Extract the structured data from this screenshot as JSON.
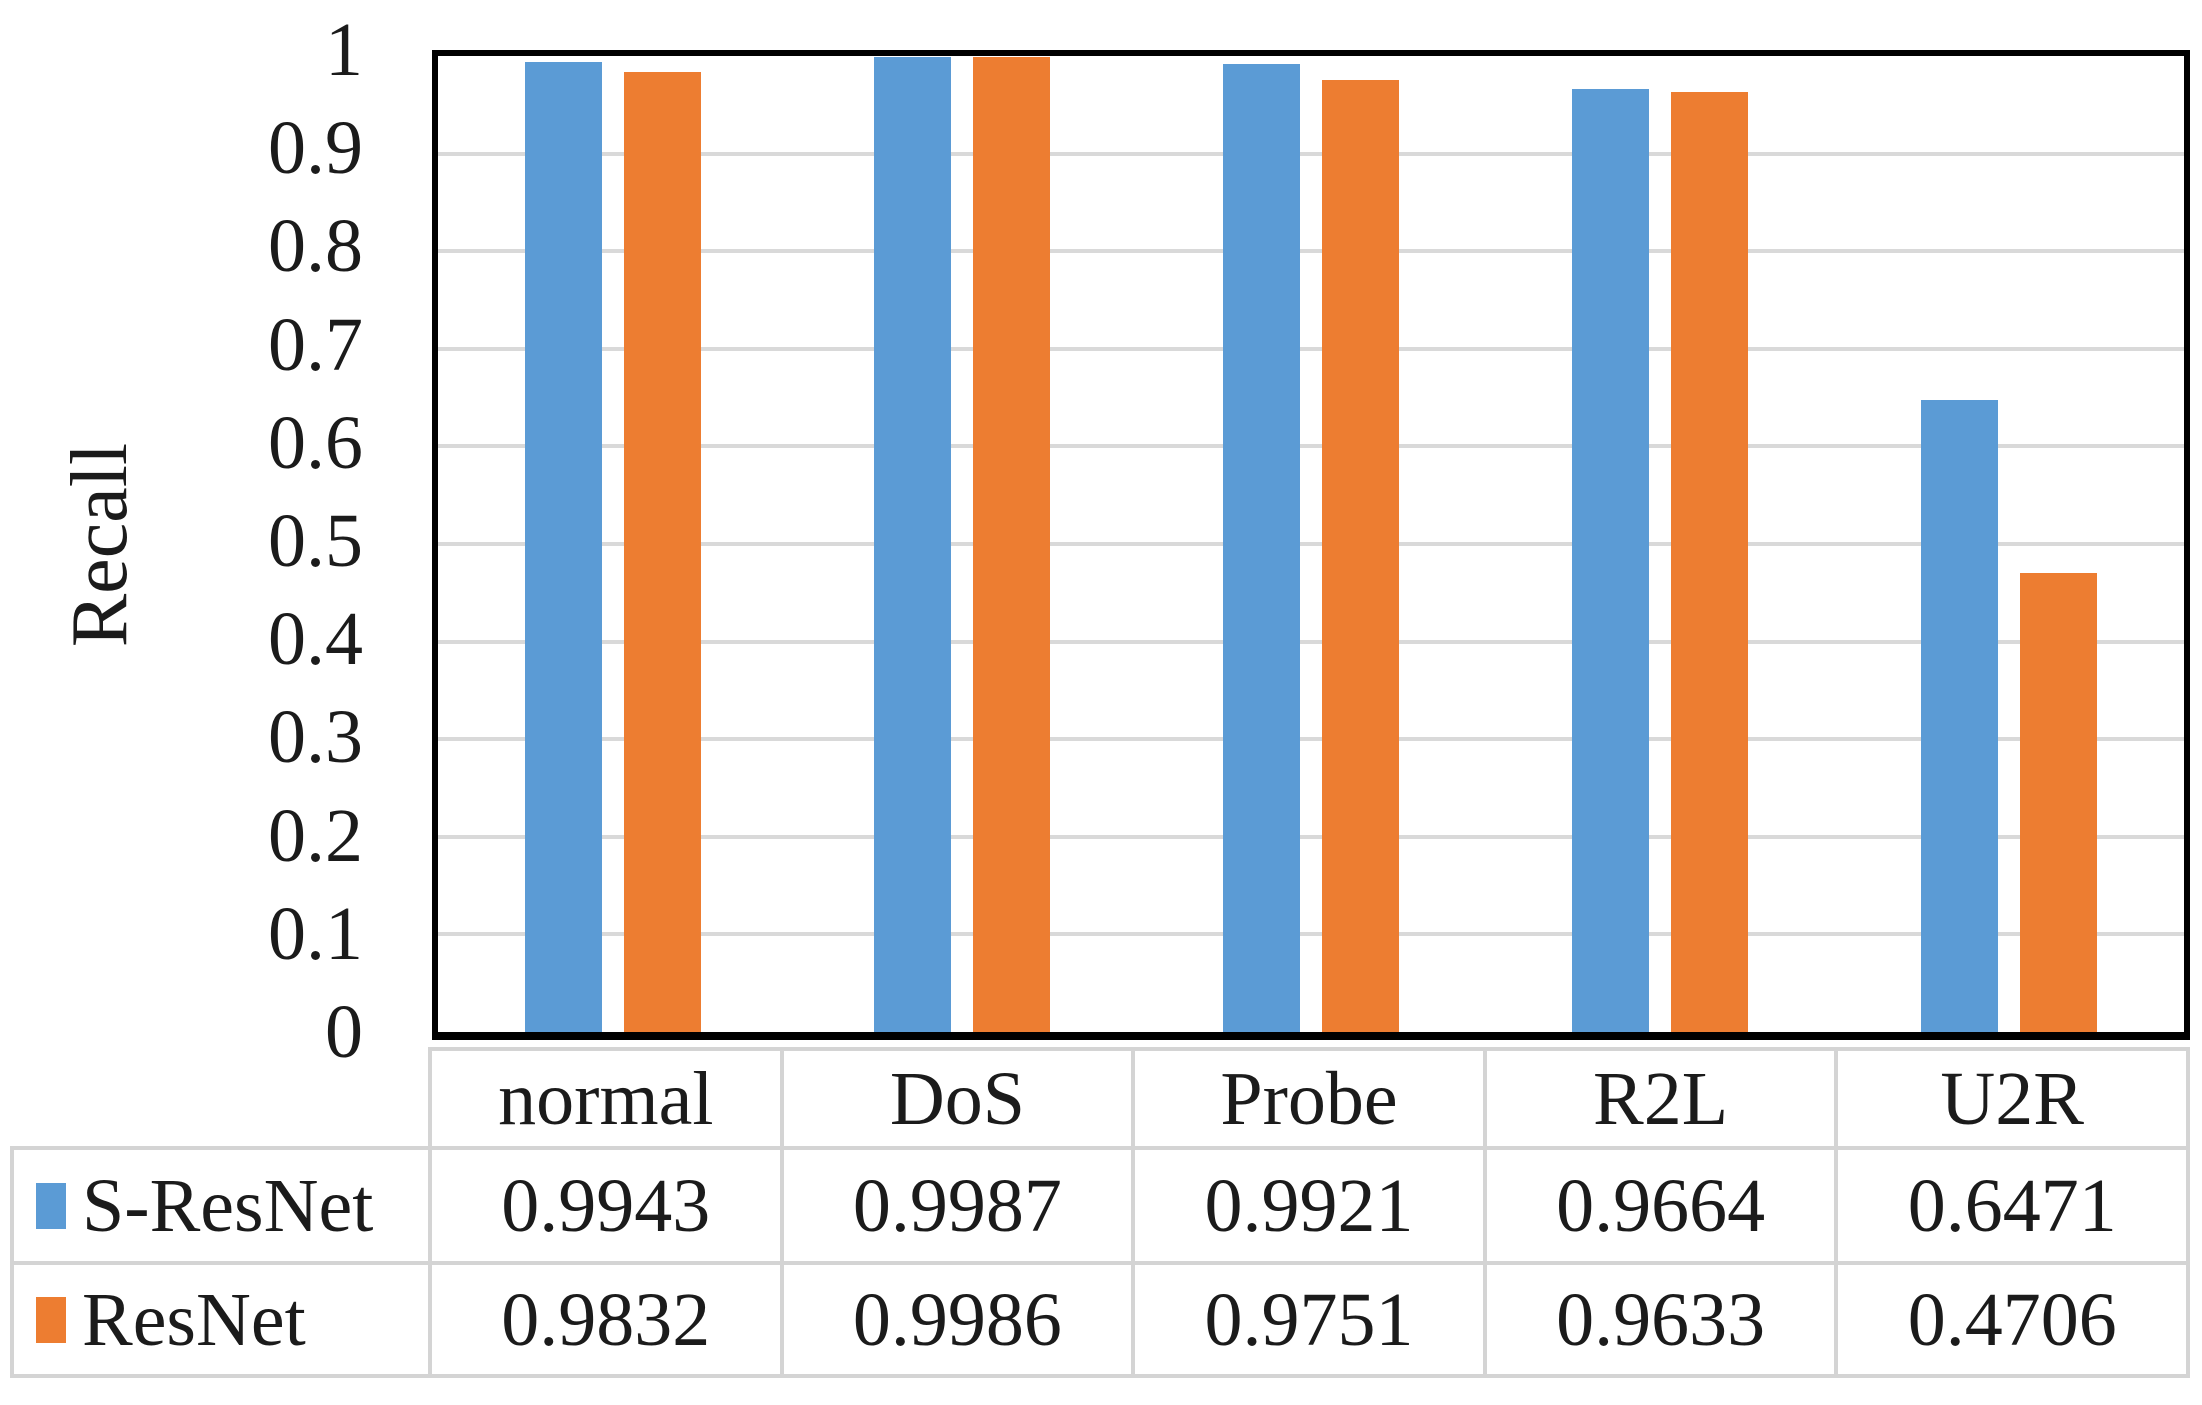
{
  "chart_data": {
    "type": "bar",
    "title": "",
    "xlabel": "",
    "ylabel": "Recall",
    "ylim": [
      0,
      1
    ],
    "grid": true,
    "legend_position": "table-left",
    "categories": [
      "normal",
      "DoS",
      "Probe",
      "R2L",
      "U2R"
    ],
    "series": [
      {
        "name": "S-ResNet",
        "color": "#5B9BD5",
        "values": [
          0.9943,
          0.9987,
          0.9921,
          0.9664,
          0.6471
        ]
      },
      {
        "name": "ResNet",
        "color": "#ED7D31",
        "values": [
          0.9832,
          0.9986,
          0.9751,
          0.9633,
          0.4706
        ]
      }
    ],
    "yticks": [
      {
        "label": "1",
        "value": 1.0
      },
      {
        "label": "0.9",
        "value": 0.9
      },
      {
        "label": "0.8",
        "value": 0.8
      },
      {
        "label": "0.7",
        "value": 0.7
      },
      {
        "label": "0.6",
        "value": 0.6
      },
      {
        "label": "0.5",
        "value": 0.5
      },
      {
        "label": "0.4",
        "value": 0.4
      },
      {
        "label": "0.3",
        "value": 0.3
      },
      {
        "label": "0.2",
        "value": 0.2
      },
      {
        "label": "0.1",
        "value": 0.1
      },
      {
        "label": "0",
        "value": 0.0
      }
    ],
    "value_decimals": 4,
    "colors": {
      "gridline": "#D9D9D9",
      "plot_border": "#000000",
      "table_border": "#D4D4D4",
      "text": "#1B1B1B",
      "background": "#FFFFFF"
    }
  }
}
